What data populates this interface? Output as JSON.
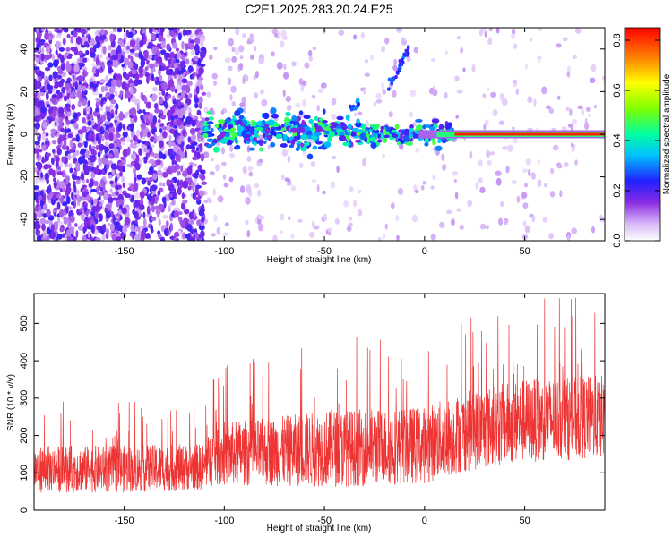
{
  "title": "C2E1.2025.283.20.24.E25",
  "colorbar": {
    "label": "Normalized spectral amplitude",
    "ticks": [
      "0.0",
      "0.2",
      "0.4",
      "0.6",
      "0.8"
    ],
    "range": [
      0,
      0.85
    ]
  },
  "chart_data": [
    {
      "type": "heatmap",
      "xlabel": "Height of straight line (km)",
      "ylabel": "Frequency (Hz)",
      "xlim": [
        -195,
        90
      ],
      "ylim": [
        -50,
        50
      ],
      "xticks": [
        -150,
        -100,
        -50,
        0,
        50
      ],
      "yticks": [
        -40,
        -20,
        0,
        20,
        40
      ],
      "grid": false,
      "features": {
        "dense_speckle_region_x": [
          -195,
          -110
        ],
        "energetic_band_x": [
          -110,
          15
        ],
        "energetic_band_frequency": 0,
        "steady_tone_x": [
          15,
          90
        ],
        "steady_tone_frequency": 0,
        "steady_tone_amplitude": 0.82,
        "rising_streak": {
          "x": [
            -18,
            -8
          ],
          "y": [
            22,
            40
          ]
        },
        "blob": {
          "x": -35,
          "y": 13
        }
      }
    },
    {
      "type": "line",
      "xlabel": "Height of straight line (km)",
      "ylabel": "SNR (10 * v/v)",
      "xlim": [
        -195,
        90
      ],
      "ylim": [
        0,
        580
      ],
      "xticks": [
        -150,
        -100,
        -50,
        0,
        50
      ],
      "yticks": [
        0,
        100,
        200,
        300,
        400,
        500
      ],
      "grid": false,
      "color": "#ee3333",
      "envelope": {
        "x": [
          -195,
          -150,
          -110,
          -105,
          -80,
          -50,
          -20,
          0,
          20,
          50,
          90
        ],
        "center": [
          110,
          110,
          115,
          150,
          155,
          165,
          170,
          175,
          210,
          240,
          250
        ],
        "spread": [
          70,
          70,
          70,
          95,
          100,
          115,
          115,
          115,
          120,
          125,
          125
        ]
      }
    }
  ]
}
